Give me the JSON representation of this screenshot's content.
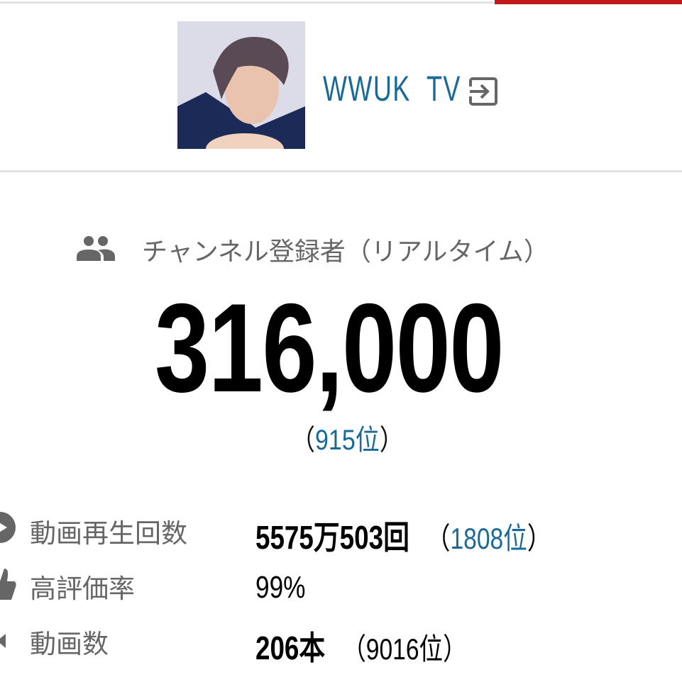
{
  "header": {
    "channel_name": "WWUK  TV",
    "exit_icon": "exit-to-app-icon",
    "accent_color": "#c0191c",
    "link_color": "#1a6a98"
  },
  "subscribers": {
    "label": "チャンネル登録者（リアルタイム）",
    "icon": "people-icon",
    "count": "316,000",
    "rank_open": "（",
    "rank": "915位",
    "rank_close": "）"
  },
  "stats": [
    {
      "icon": "play-circle-icon",
      "label": "動画再生回数",
      "value": "5575万503回",
      "rank_open": "（",
      "rank": "1808位",
      "rank_close": "）"
    },
    {
      "icon": "thumbs-up-icon",
      "label": "高評価率",
      "value": "99%"
    },
    {
      "icon": "video-camera-icon",
      "label": "動画数",
      "value": "206本",
      "rank": "（9016位）"
    }
  ]
}
